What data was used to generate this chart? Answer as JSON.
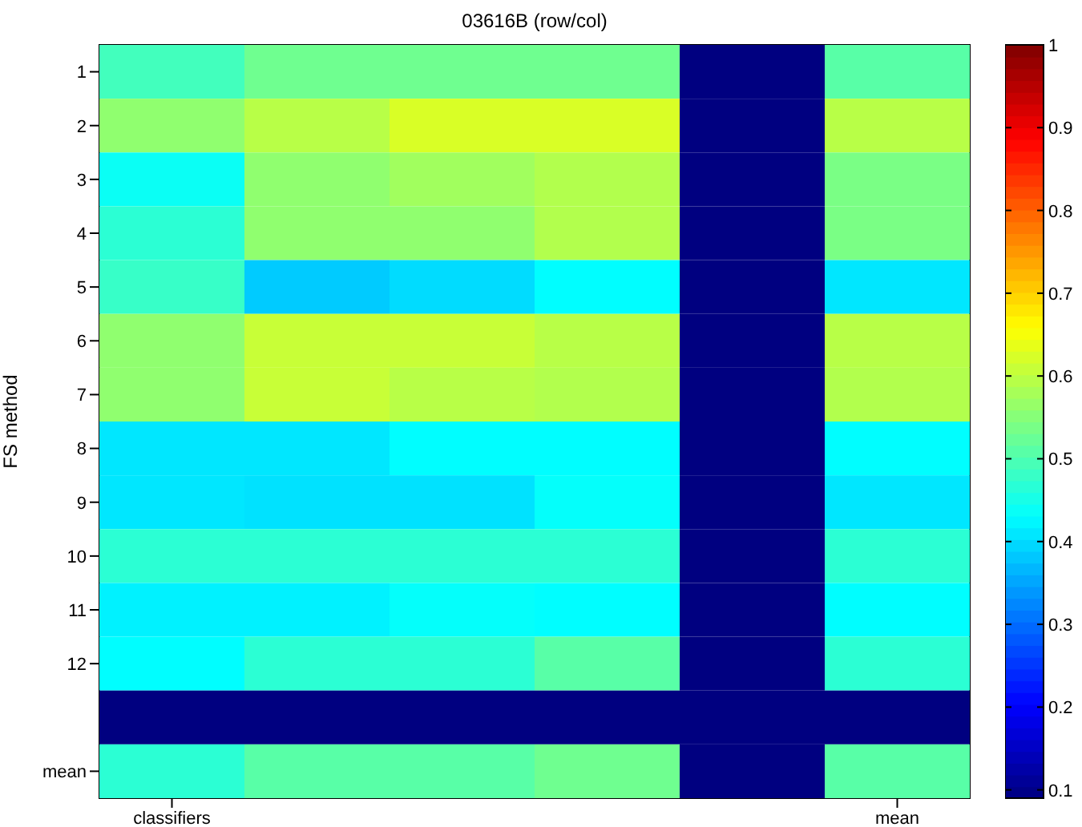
{
  "chart_data": {
    "type": "heatmap",
    "title": "03616B (row/col)",
    "ylabel": "FS method",
    "categories": [
      "classifiers",
      null,
      null,
      null,
      null,
      "mean"
    ],
    "y_categories": [
      "1",
      "2",
      "3",
      "4",
      "5",
      "6",
      "7",
      "8",
      "9",
      "10",
      "11",
      "12",
      null,
      "mean"
    ],
    "cells": [
      [
        0.49,
        0.53,
        0.53,
        0.53,
        0.09,
        0.51
      ],
      [
        0.56,
        0.595,
        0.625,
        0.625,
        0.09,
        0.595
      ],
      [
        0.44,
        0.56,
        0.575,
        0.59,
        0.09,
        0.54
      ],
      [
        0.47,
        0.56,
        0.56,
        0.59,
        0.09,
        0.54
      ],
      [
        0.48,
        0.385,
        0.4,
        0.43,
        0.09,
        0.41
      ],
      [
        0.56,
        0.61,
        0.61,
        0.595,
        0.09,
        0.595
      ],
      [
        0.56,
        0.61,
        0.595,
        0.59,
        0.09,
        0.59
      ],
      [
        0.41,
        0.41,
        0.43,
        0.43,
        0.09,
        0.43
      ],
      [
        0.41,
        0.405,
        0.405,
        0.435,
        0.09,
        0.41
      ],
      [
        0.47,
        0.47,
        0.47,
        0.47,
        0.09,
        0.47
      ],
      [
        0.42,
        0.42,
        0.435,
        0.43,
        0.09,
        0.43
      ],
      [
        0.43,
        0.47,
        0.47,
        0.51,
        0.09,
        0.47
      ],
      [
        0.09,
        0.09,
        0.09,
        0.09,
        0.09,
        0.09
      ],
      [
        0.47,
        0.51,
        0.51,
        0.53,
        0.09,
        0.51
      ]
    ],
    "clim": [
      0.09,
      1
    ],
    "cticks": [
      0.1,
      0.2,
      0.3,
      0.4,
      0.5,
      0.6,
      0.7,
      0.8,
      0.9,
      1
    ]
  }
}
